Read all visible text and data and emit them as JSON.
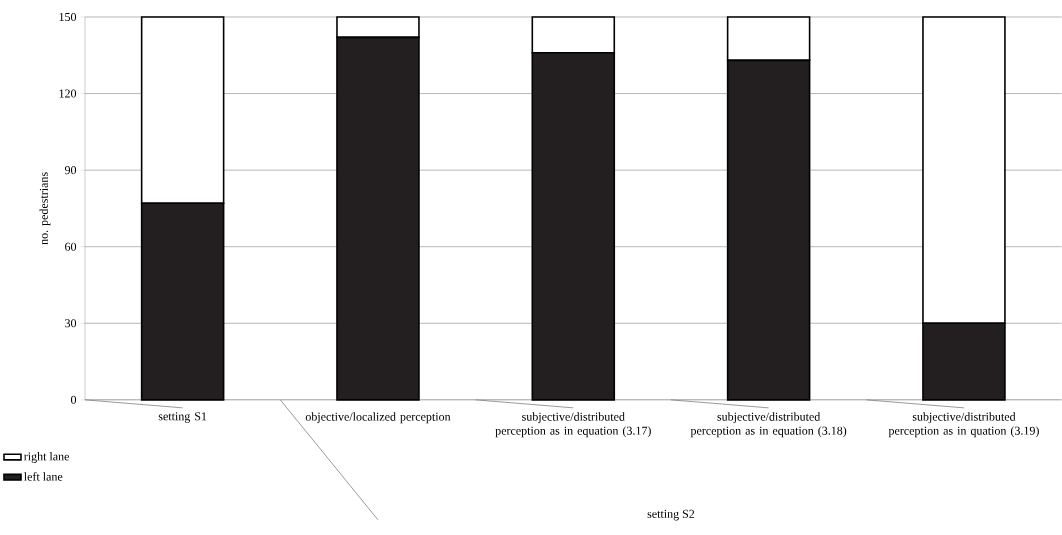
{
  "chart_data": {
    "type": "bar",
    "stacked": true,
    "ylabel": "no. pedestrians",
    "categories": [
      "setting S1",
      "objective/localized perception",
      "subjective/distributed perception as in equation (3.17)",
      "subjective/distributed perception as in equation (3.18)",
      "subjective/distributed perception as in quation (3.19)"
    ],
    "series": [
      {
        "name": "left lane",
        "color": "#231f20",
        "values": [
          77,
          142,
          136,
          133,
          30
        ]
      },
      {
        "name": "right lane",
        "color": "#ffffff",
        "values": [
          73,
          8,
          14,
          17,
          120
        ]
      }
    ],
    "ylim": [
      0,
      150
    ],
    "yticks": [
      0,
      30,
      60,
      90,
      120,
      150
    ],
    "grid": "y",
    "legend": "bottom left",
    "annotations": [
      "setting S2"
    ]
  }
}
